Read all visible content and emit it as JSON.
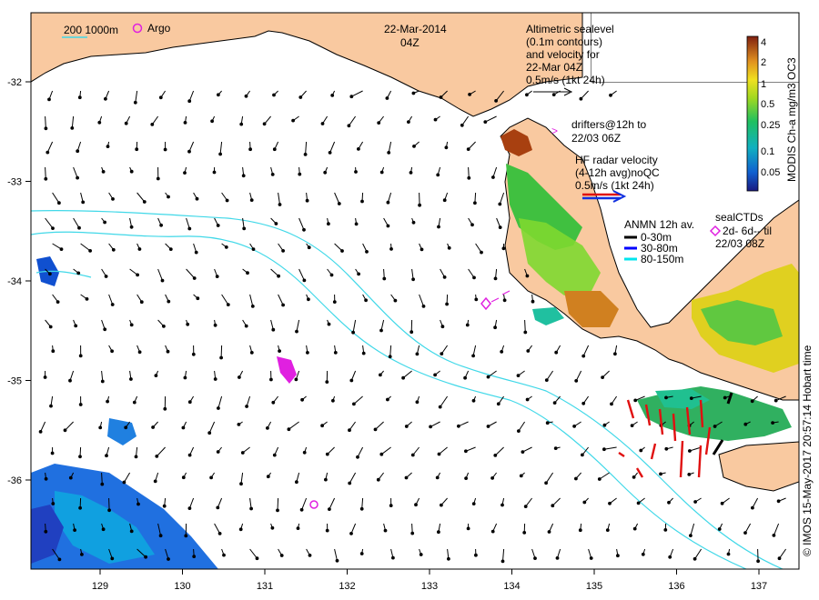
{
  "header": {
    "date": "22-Mar-2014",
    "time": "04Z",
    "isobath_label": "200  1000m",
    "argo_label": "Argo"
  },
  "legend": {
    "altimetric": [
      "Altimetric sealevel",
      "(0.1m contours)",
      "and velocity for",
      "22-Mar 04Z",
      "0.5m/s (1kt 24h)"
    ],
    "drifters": [
      "drifters@12h to",
      "22/03 06Z"
    ],
    "drifter_symbol": ">",
    "hf_radar": [
      "HF radar velocity",
      "(4-12h avg)noQC",
      "0.5m/s (1kt 24h)"
    ],
    "anmn": {
      "title": "ANMN 12h av.",
      "items": [
        {
          "label": "0-30m",
          "color": "#000000"
        },
        {
          "label": "30-80m",
          "color": "#0000ff"
        },
        {
          "label": "80-150m",
          "color": "#00e5ee"
        }
      ]
    },
    "sealctds": [
      "sealCTDs",
      "2d- 6d-- til",
      "22/03 08Z"
    ]
  },
  "colorbar": {
    "title": "MODIS Ch-a mg/m3 OC3",
    "ticks": [
      "4",
      "2",
      "1",
      "0.5",
      "0.25",
      "0.1",
      "0.05"
    ]
  },
  "credit": "© IMOS 15-May-2017 20:57:14 Hobart time",
  "axes": {
    "x_ticks": [
      "129",
      "130",
      "131",
      "132",
      "133",
      "134",
      "135",
      "136",
      "137"
    ],
    "y_ticks": [
      "-32",
      "-33",
      "-34",
      "-35",
      "-36"
    ]
  },
  "colors": {
    "land": "#f9c9a0",
    "isobath": "#40d8e8",
    "argo": "#e020e0",
    "hf_radar": "#e01010"
  }
}
